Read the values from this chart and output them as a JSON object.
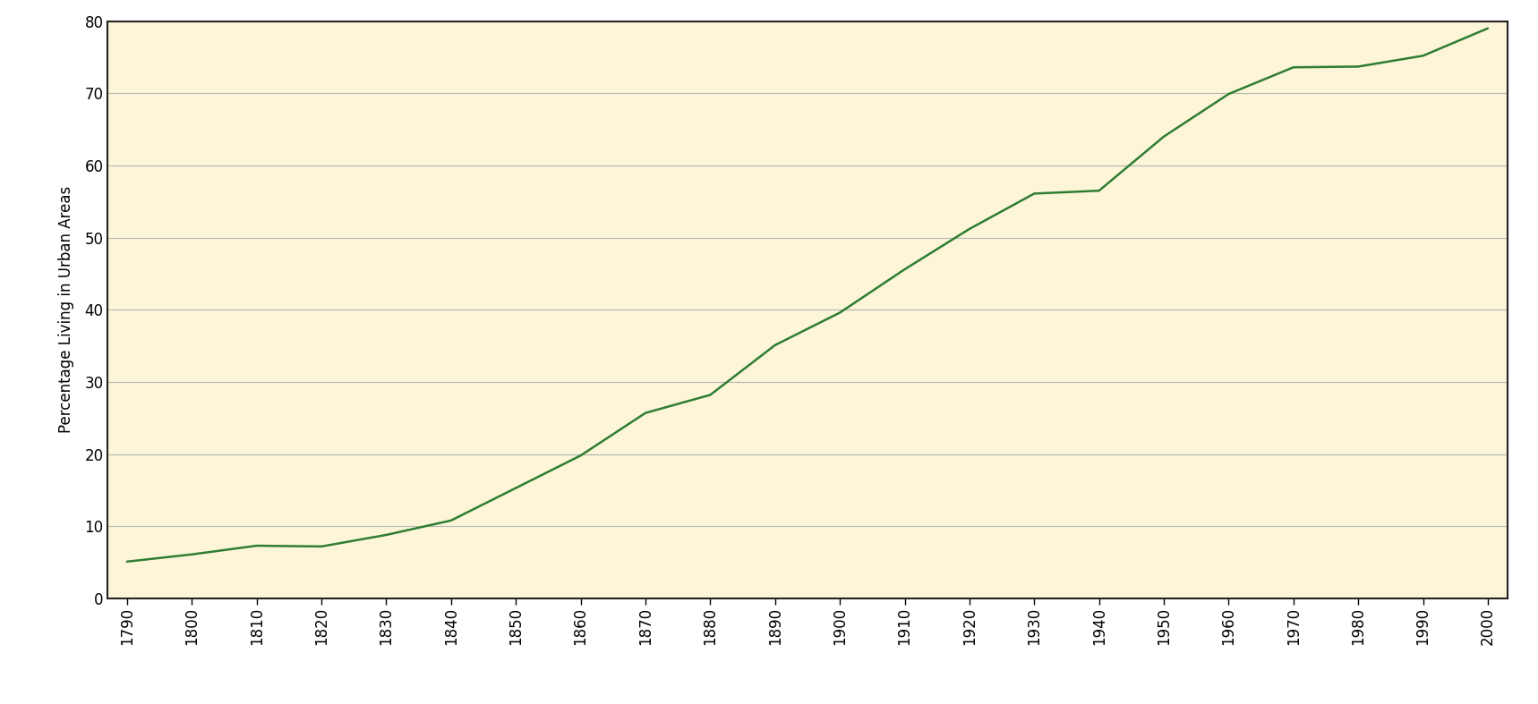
{
  "years": [
    1790,
    1800,
    1810,
    1820,
    1830,
    1840,
    1850,
    1860,
    1870,
    1880,
    1890,
    1900,
    1910,
    1920,
    1930,
    1940,
    1950,
    1960,
    1970,
    1980,
    1990,
    2000
  ],
  "values": [
    5.1,
    6.1,
    7.3,
    7.2,
    8.8,
    10.8,
    15.3,
    19.8,
    25.7,
    28.2,
    35.1,
    39.6,
    45.6,
    51.2,
    56.1,
    56.5,
    64.0,
    69.9,
    73.6,
    73.7,
    75.2,
    79.0
  ],
  "line_color": "#2e7d32",
  "bg_color": "#fdf5d8",
  "grid_color": "#b0b8b0",
  "border_color": "#222222",
  "ylabel": "Percentage Living in Urban Areas",
  "ylim": [
    0,
    80
  ],
  "xlim": [
    1787,
    2003
  ],
  "yticks": [
    0,
    10,
    20,
    30,
    40,
    50,
    60,
    70,
    80
  ],
  "xticks": [
    1790,
    1800,
    1810,
    1820,
    1830,
    1840,
    1850,
    1860,
    1870,
    1880,
    1890,
    1900,
    1910,
    1920,
    1930,
    1940,
    1950,
    1960,
    1970,
    1980,
    1990,
    2000
  ],
  "tick_label_fontsize": 12,
  "ylabel_fontsize": 12,
  "line_width": 1.8,
  "fig_bg": "#ffffff"
}
